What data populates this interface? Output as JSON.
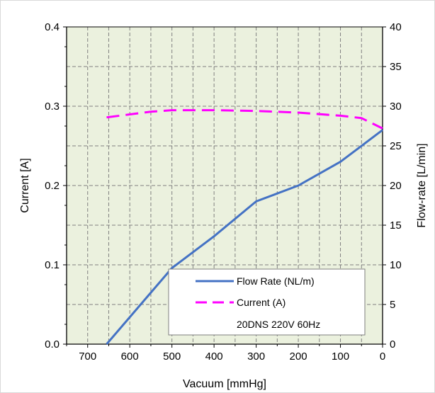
{
  "chart_data": {
    "type": "line",
    "xlabel": "Vacuum [mmHg]",
    "ylabel_left": "Current [A]",
    "ylabel_right": "Flow-rate [L/min]",
    "x_reversed": true,
    "xlim": [
      0,
      750
    ],
    "x_ticks": [
      0,
      100,
      200,
      300,
      400,
      500,
      600,
      700
    ],
    "x_tick_labels": [
      "0",
      "100",
      "200",
      "300",
      "400",
      "500",
      "600",
      "700"
    ],
    "ylim_left": [
      0,
      0.4
    ],
    "y_left_ticks": [
      0.0,
      0.1,
      0.2,
      0.3,
      0.4
    ],
    "y_left_tick_labels": [
      "0.0",
      "0.1",
      "0.2",
      "0.3",
      "0.4"
    ],
    "ylim_right": [
      0,
      40
    ],
    "y_right_ticks": [
      0,
      5,
      10,
      15,
      20,
      25,
      30,
      35,
      40
    ],
    "y_right_tick_labels": [
      "0",
      "5",
      "10",
      "15",
      "20",
      "25",
      "30",
      "35",
      "40"
    ],
    "grid": true,
    "plot_background": "#ebf1de",
    "legend_position": "bottom-right",
    "legend_note": "20DNS 220V 60Hz",
    "series": [
      {
        "name": "Flow Rate (NL/m)",
        "axis": "right",
        "color": "#4472c4",
        "style": "solid",
        "x": [
          655,
          500,
          400,
          300,
          200,
          100,
          0
        ],
        "y": [
          0,
          9.6,
          13.6,
          18,
          20,
          23,
          27
        ]
      },
      {
        "name": "Current (A)",
        "axis": "left",
        "color": "#ff00ff",
        "style": "dashed",
        "x": [
          655,
          550,
          500,
          400,
          300,
          200,
          100,
          50,
          0
        ],
        "y": [
          0.286,
          0.293,
          0.295,
          0.295,
          0.294,
          0.292,
          0.288,
          0.285,
          0.272
        ]
      }
    ]
  }
}
